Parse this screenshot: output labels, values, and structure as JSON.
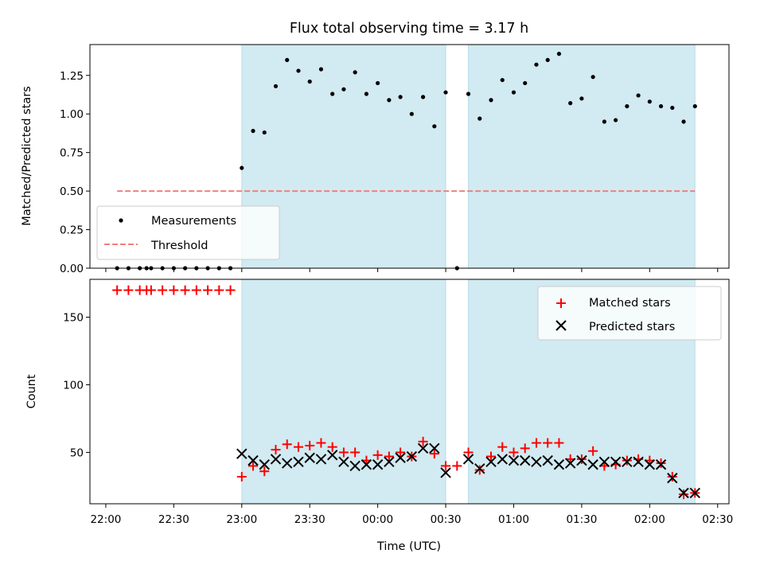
{
  "chart_data": [
    {
      "type": "scatter",
      "title": "Flux total observing time = 3.17 h",
      "xlabel": "",
      "ylabel": "Matched/Predicted stars",
      "x_axis": "time",
      "xlim": [
        "21:53",
        "02:35"
      ],
      "ylim": [
        0,
        1.45
      ],
      "yticks": [
        0.0,
        0.25,
        0.5,
        0.75,
        1.0,
        1.25
      ],
      "ytick_labels": [
        "0.00",
        "0.25",
        "0.50",
        "0.75",
        "1.00",
        "1.25"
      ],
      "shaded_intervals": [
        [
          "23:00",
          "00:30"
        ],
        [
          "00:40",
          "02:20"
        ]
      ],
      "shade_color": "#add8e6",
      "legend": {
        "position": "lower-left",
        "entries": [
          "Measurements",
          "Threshold"
        ]
      },
      "series": [
        {
          "name": "Measurements",
          "marker": "dot",
          "color": "#000000",
          "points": [
            [
              "22:05",
              0
            ],
            [
              "22:10",
              0
            ],
            [
              "22:15",
              0
            ],
            [
              "22:18",
              0
            ],
            [
              "22:20",
              0
            ],
            [
              "22:25",
              0
            ],
            [
              "22:30",
              0
            ],
            [
              "22:35",
              0
            ],
            [
              "22:40",
              0
            ],
            [
              "22:45",
              0
            ],
            [
              "22:50",
              0
            ],
            [
              "22:55",
              0
            ],
            [
              "23:00",
              0.65
            ],
            [
              "23:05",
              0.89
            ],
            [
              "23:10",
              0.88
            ],
            [
              "23:15",
              1.18
            ],
            [
              "23:20",
              1.35
            ],
            [
              "23:25",
              1.28
            ],
            [
              "23:30",
              1.21
            ],
            [
              "23:35",
              1.29
            ],
            [
              "23:40",
              1.13
            ],
            [
              "23:45",
              1.16
            ],
            [
              "23:50",
              1.27
            ],
            [
              "23:55",
              1.13
            ],
            [
              "00:00",
              1.2
            ],
            [
              "00:05",
              1.09
            ],
            [
              "00:10",
              1.11
            ],
            [
              "00:15",
              1.0
            ],
            [
              "00:20",
              1.11
            ],
            [
              "00:25",
              0.92
            ],
            [
              "00:30",
              1.14
            ],
            [
              "00:35",
              0
            ],
            [
              "00:40",
              1.13
            ],
            [
              "00:45",
              0.97
            ],
            [
              "00:50",
              1.09
            ],
            [
              "00:55",
              1.22
            ],
            [
              "01:00",
              1.14
            ],
            [
              "01:05",
              1.2
            ],
            [
              "01:10",
              1.32
            ],
            [
              "01:15",
              1.35
            ],
            [
              "01:20",
              1.39
            ],
            [
              "01:25",
              1.07
            ],
            [
              "01:30",
              1.1
            ],
            [
              "01:35",
              1.24
            ],
            [
              "01:40",
              0.95
            ],
            [
              "01:45",
              0.96
            ],
            [
              "01:50",
              1.05
            ],
            [
              "01:55",
              1.12
            ],
            [
              "02:00",
              1.08
            ],
            [
              "02:05",
              1.05
            ],
            [
              "02:10",
              1.04
            ],
            [
              "02:15",
              0.95
            ],
            [
              "02:20",
              1.05
            ]
          ]
        },
        {
          "name": "Threshold",
          "marker": "dashed-line",
          "color": "#f08080",
          "points": [
            [
              "22:05",
              0.5
            ],
            [
              "02:20",
              0.5
            ]
          ]
        }
      ]
    },
    {
      "type": "scatter",
      "title": "",
      "xlabel": "Time (UTC)",
      "ylabel": "Count",
      "x_axis": "time",
      "xlim": [
        "21:53",
        "02:35"
      ],
      "ylim": [
        12,
        178
      ],
      "yticks": [
        50,
        100,
        150
      ],
      "ytick_labels": [
        "50",
        "100",
        "150"
      ],
      "xticks": [
        "22:00",
        "22:30",
        "23:00",
        "23:30",
        "00:00",
        "00:30",
        "01:00",
        "01:30",
        "02:00",
        "02:30"
      ],
      "xtick_labels": [
        "22:00",
        "22:30",
        "23:00",
        "23:30",
        "00:00",
        "00:30",
        "01:00",
        "01:30",
        "02:00",
        "02:30"
      ],
      "shaded_intervals": [
        [
          "23:00",
          "00:30"
        ],
        [
          "00:40",
          "02:20"
        ]
      ],
      "shade_color": "#add8e6",
      "legend": {
        "position": "top-right",
        "entries": [
          "Matched stars",
          "Predicted stars"
        ]
      },
      "series": [
        {
          "name": "Matched stars",
          "marker": "plus",
          "color": "#ff0000",
          "points": [
            [
              "22:05",
              170
            ],
            [
              "22:10",
              170
            ],
            [
              "22:15",
              170
            ],
            [
              "22:18",
              170
            ],
            [
              "22:20",
              170
            ],
            [
              "22:25",
              170
            ],
            [
              "22:30",
              170
            ],
            [
              "22:35",
              170
            ],
            [
              "22:40",
              170
            ],
            [
              "22:45",
              170
            ],
            [
              "22:50",
              170
            ],
            [
              "22:55",
              170
            ],
            [
              "23:00",
              32
            ],
            [
              "23:05",
              40
            ],
            [
              "23:10",
              36
            ],
            [
              "23:15",
              52
            ],
            [
              "23:20",
              56
            ],
            [
              "23:25",
              54
            ],
            [
              "23:30",
              55
            ],
            [
              "23:35",
              57
            ],
            [
              "23:40",
              54
            ],
            [
              "23:45",
              50
            ],
            [
              "23:50",
              50
            ],
            [
              "23:55",
              44
            ],
            [
              "00:00",
              48
            ],
            [
              "00:05",
              47
            ],
            [
              "00:10",
              50
            ],
            [
              "00:15",
              47
            ],
            [
              "00:20",
              58
            ],
            [
              "00:25",
              49
            ],
            [
              "00:30",
              40
            ],
            [
              "00:35",
              40
            ],
            [
              "00:40",
              50
            ],
            [
              "00:45",
              37
            ],
            [
              "00:50",
              47
            ],
            [
              "00:55",
              54
            ],
            [
              "01:00",
              50
            ],
            [
              "01:05",
              53
            ],
            [
              "01:10",
              57
            ],
            [
              "01:15",
              57
            ],
            [
              "01:20",
              57
            ],
            [
              "01:25",
              45
            ],
            [
              "01:30",
              45
            ],
            [
              "01:35",
              51
            ],
            [
              "01:40",
              40
            ],
            [
              "01:45",
              41
            ],
            [
              "01:50",
              44
            ],
            [
              "01:55",
              45
            ],
            [
              "02:00",
              44
            ],
            [
              "02:05",
              42
            ],
            [
              "02:10",
              32
            ],
            [
              "02:15",
              19
            ],
            [
              "02:20",
              20
            ]
          ]
        },
        {
          "name": "Predicted stars",
          "marker": "x",
          "color": "#000000",
          "points": [
            [
              "23:00",
              49
            ],
            [
              "23:05",
              44
            ],
            [
              "23:10",
              41
            ],
            [
              "23:15",
              45
            ],
            [
              "23:20",
              42
            ],
            [
              "23:25",
              43
            ],
            [
              "23:30",
              46
            ],
            [
              "23:35",
              45
            ],
            [
              "23:40",
              48
            ],
            [
              "23:45",
              43
            ],
            [
              "23:50",
              40
            ],
            [
              "23:55",
              41
            ],
            [
              "00:00",
              41
            ],
            [
              "00:05",
              43
            ],
            [
              "00:10",
              46
            ],
            [
              "00:15",
              47
            ],
            [
              "00:20",
              53
            ],
            [
              "00:25",
              53
            ],
            [
              "00:30",
              35
            ],
            [
              "00:40",
              45
            ],
            [
              "00:45",
              38
            ],
            [
              "00:50",
              43
            ],
            [
              "00:55",
              45
            ],
            [
              "01:00",
              44
            ],
            [
              "01:05",
              44
            ],
            [
              "01:10",
              43
            ],
            [
              "01:15",
              44
            ],
            [
              "01:20",
              41
            ],
            [
              "01:25",
              42
            ],
            [
              "01:30",
              44
            ],
            [
              "01:35",
              41
            ],
            [
              "01:40",
              43
            ],
            [
              "01:45",
              43
            ],
            [
              "01:50",
              43
            ],
            [
              "01:55",
              43
            ],
            [
              "02:00",
              41
            ],
            [
              "02:05",
              41
            ],
            [
              "02:10",
              31
            ],
            [
              "02:15",
              20
            ],
            [
              "02:20",
              20
            ]
          ]
        }
      ]
    }
  ]
}
